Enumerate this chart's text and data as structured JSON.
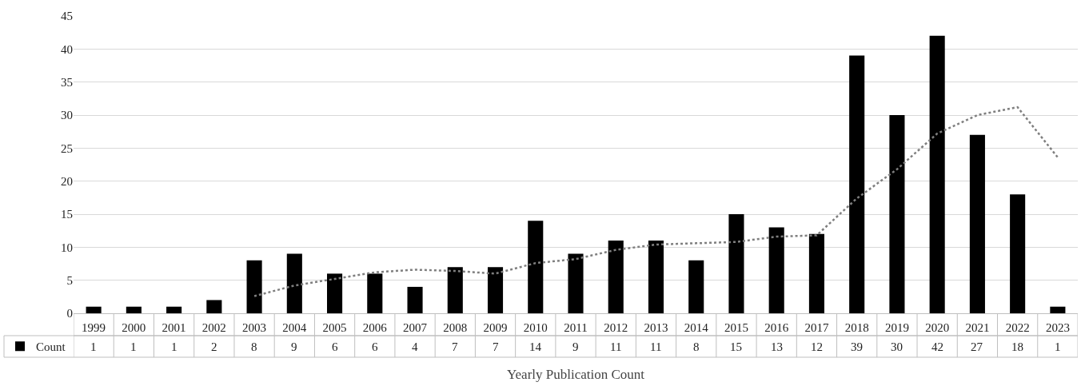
{
  "chart_data": {
    "type": "bar",
    "xlabel": "Yearly Publication Count",
    "categories": [
      "1999",
      "2000",
      "2001",
      "2002",
      "2003",
      "2004",
      "2005",
      "2006",
      "2007",
      "2008",
      "2009",
      "2010",
      "2011",
      "2012",
      "2013",
      "2014",
      "2015",
      "2016",
      "2017",
      "2018",
      "2019",
      "2020",
      "2021",
      "2022",
      "2023"
    ],
    "series": [
      {
        "name": "Count",
        "color": "#000000",
        "values": [
          1,
          1,
          1,
          2,
          8,
          9,
          6,
          6,
          4,
          7,
          7,
          14,
          9,
          11,
          11,
          8,
          15,
          13,
          12,
          39,
          30,
          42,
          27,
          18,
          1
        ],
        "value_labels": [
          "1",
          "1",
          "1",
          "2",
          "8",
          "9",
          "6",
          "6",
          "4",
          "7",
          "7",
          "14",
          "9",
          "11",
          "11",
          "8",
          "15",
          "13",
          "12",
          "39",
          "30",
          "42",
          "27",
          "18",
          "1"
        ]
      },
      {
        "type": "line",
        "color": "#7f7f7f",
        "line_style": "dotted",
        "marker": "none",
        "values": [
          null,
          null,
          null,
          null,
          2.6,
          4.2,
          5.2,
          6.2,
          6.6,
          6.4,
          6,
          7.6,
          8.2,
          9.6,
          10.4,
          10.6,
          10.8,
          11.6,
          11.8,
          17.4,
          21.8,
          27.2,
          30,
          31.2,
          23.6
        ]
      }
    ],
    "ylim": [
      0,
      45
    ],
    "yticks": [
      0,
      5,
      10,
      15,
      20,
      25,
      30,
      35,
      40,
      45
    ],
    "grid": "y",
    "legend": "bottom left"
  }
}
